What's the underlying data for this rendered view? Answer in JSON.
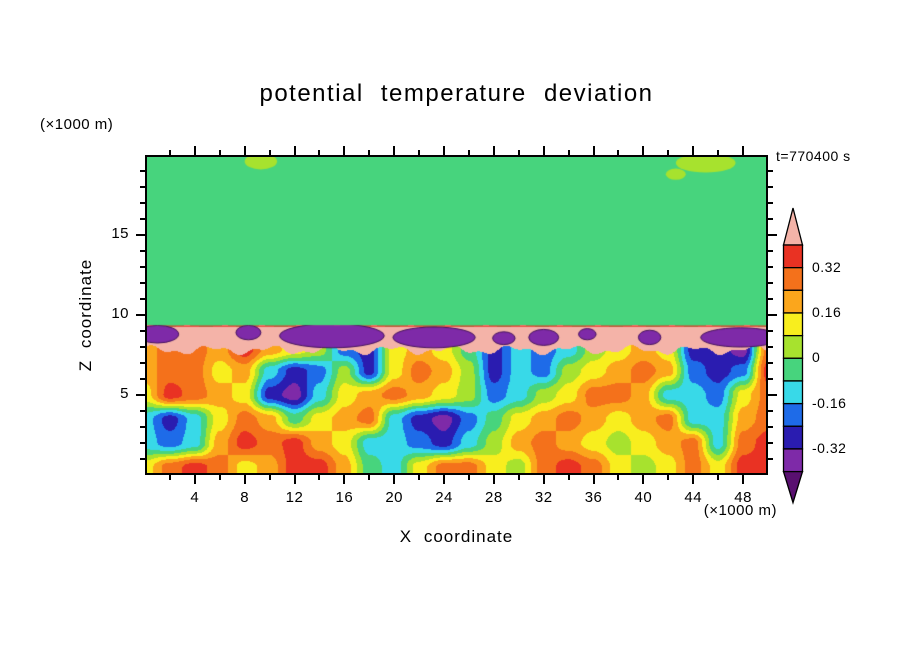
{
  "figure": {
    "title": "potential temperature deviation",
    "time_label": "t=770400 s"
  },
  "axes": {
    "x": {
      "label": "X coordinate",
      "unit_label": "(×1000 m)",
      "min": 0,
      "max": 50,
      "major_tick_labels": [
        "4",
        "8",
        "12",
        "16",
        "20",
        "24",
        "28",
        "32",
        "36",
        "40",
        "44",
        "48"
      ],
      "minor_tick_step": 2
    },
    "z": {
      "label": "Z coordinate",
      "unit_label": "(×1000 m)",
      "min": 0,
      "max": 20,
      "major_tick_labels": [
        "5",
        "10",
        "15"
      ],
      "minor_tick_step": 1
    }
  },
  "colorbar": {
    "labels": [
      "0.32",
      "0.16",
      "0",
      "-0.16",
      "-0.32"
    ],
    "label_boundary_indices": [
      1,
      3,
      5,
      7,
      9
    ],
    "box_colors_top_to_bottom": [
      "#e93223",
      "#f4711b",
      "#fba61c",
      "#f8ee1e",
      "#a7e22e",
      "#47d47d",
      "#38d9e8",
      "#1e6be8",
      "#2a1cb0",
      "#7e2aa8"
    ],
    "triangle_top_color": "#f4b3a8",
    "triangle_bottom_color": "#591070"
  },
  "chart_data": {
    "type": "heatmap",
    "title": "potential temperature deviation",
    "xlabel": "X coordinate (×1000 m)",
    "ylabel": "Z coordinate (×1000 m)",
    "xlim": [
      0,
      50
    ],
    "ylim": [
      0,
      20
    ],
    "annotations": [
      "t=770400 s"
    ],
    "legend": "filled contour colorbar, labeled levels 0.32, 0.16, 0, -0.16, -0.32",
    "levels": [
      -0.4,
      -0.32,
      -0.24,
      -0.16,
      -0.08,
      0,
      0.08,
      0.16,
      0.24,
      0.32,
      0.4
    ],
    "level_colors": [
      "#591070",
      "#7e2aa8",
      "#2a1cb0",
      "#1e6be8",
      "#38d9e8",
      "#47d47d",
      "#a7e22e",
      "#f8ee1e",
      "#fba61c",
      "#f4711b",
      "#e93223",
      "#f4b3a8"
    ],
    "field": {
      "upper_region_value": -0.04,
      "inversion_band": {
        "z_bottom": 7.8,
        "z_top": 9.3,
        "value": 0.45
      },
      "cold_blobs_in_band": [
        {
          "x": 1.0,
          "z": 8.8,
          "rx": 1.7,
          "rz": 0.55,
          "value": -0.36
        },
        {
          "x": 8.3,
          "z": 8.9,
          "rx": 1.0,
          "rz": 0.45,
          "value": -0.36
        },
        {
          "x": 15.0,
          "z": 8.7,
          "rx": 4.2,
          "rz": 0.75,
          "value": -0.36
        },
        {
          "x": 23.2,
          "z": 8.6,
          "rx": 3.3,
          "rz": 0.65,
          "value": -0.36
        },
        {
          "x": 28.8,
          "z": 8.55,
          "rx": 0.9,
          "rz": 0.4,
          "value": -0.36
        },
        {
          "x": 32.0,
          "z": 8.6,
          "rx": 1.2,
          "rz": 0.5,
          "value": -0.36
        },
        {
          "x": 35.5,
          "z": 8.8,
          "rx": 0.7,
          "rz": 0.35,
          "value": -0.36
        },
        {
          "x": 40.5,
          "z": 8.6,
          "rx": 0.9,
          "rz": 0.45,
          "value": -0.36
        },
        {
          "x": 47.8,
          "z": 8.6,
          "rx": 3.2,
          "rz": 0.6,
          "value": -0.36
        }
      ],
      "upper_specks": [
        {
          "x": 9.3,
          "z": 19.6,
          "rx": 1.3,
          "rz": 0.5,
          "value": 0.04
        },
        {
          "x": 45.0,
          "z": 19.5,
          "rx": 2.4,
          "rz": 0.6,
          "value": 0.04
        },
        {
          "x": 42.6,
          "z": 18.8,
          "rx": 0.8,
          "rz": 0.35,
          "value": 0.04
        }
      ],
      "mixed_layer_grid": {
        "xs": [
          0,
          2,
          4,
          6,
          8,
          10,
          12,
          14,
          16,
          18,
          20,
          22,
          24,
          26,
          28,
          30,
          32,
          34,
          36,
          38,
          40,
          42,
          44,
          46,
          48,
          50
        ],
        "zs": [
          0.5,
          2,
          3.5,
          5,
          6.5,
          7.8
        ],
        "values": [
          [
            0.12,
            0.28,
            0.36,
            0.28,
            0.12,
            0.2,
            0.36,
            0.36,
            0.2,
            -0.04,
            -0.12,
            0.12,
            0.28,
            0.28,
            0.12,
            0.04,
            0.28,
            0.36,
            0.28,
            0.12,
            0.04,
            0.12,
            0.28,
            0.12,
            0.36,
            0.36
          ],
          [
            -0.12,
            -0.2,
            -0.12,
            0.2,
            0.36,
            0.28,
            0.36,
            0.2,
            0.12,
            -0.12,
            -0.12,
            -0.2,
            -0.28,
            -0.12,
            0.04,
            0.2,
            0.28,
            0.2,
            0.12,
            0.04,
            0.12,
            0.2,
            0.28,
            -0.12,
            0.28,
            0.36
          ],
          [
            -0.12,
            -0.28,
            -0.12,
            0.12,
            0.28,
            0.2,
            -0.04,
            0.12,
            0.2,
            0.28,
            -0.12,
            -0.28,
            -0.36,
            -0.2,
            -0.04,
            0.12,
            0.2,
            0.28,
            0.2,
            0.12,
            0.2,
            0.28,
            -0.12,
            -0.12,
            0.2,
            0.28
          ],
          [
            0.12,
            0.36,
            0.28,
            0.2,
            0.12,
            -0.28,
            -0.36,
            -0.12,
            0.12,
            0.2,
            0.28,
            0.2,
            0.12,
            0.04,
            -0.2,
            -0.12,
            0.04,
            0.12,
            0.28,
            0.28,
            0.2,
            -0.12,
            -0.12,
            -0.2,
            0.12,
            0.28
          ],
          [
            0.2,
            0.28,
            0.28,
            0.12,
            0.2,
            -0.12,
            -0.28,
            -0.2,
            0.04,
            -0.28,
            0.12,
            0.28,
            0.2,
            0.04,
            -0.28,
            -0.12,
            -0.2,
            0.04,
            0.12,
            0.2,
            0.28,
            0.2,
            -0.2,
            -0.28,
            -0.2,
            0.36
          ],
          [
            0.2,
            0.28,
            0.28,
            0.2,
            0.36,
            0.2,
            0.12,
            0.04,
            -0.2,
            -0.28,
            0.12,
            0.2,
            0.12,
            -0.04,
            -0.28,
            -0.12,
            -0.2,
            -0.12,
            0.04,
            0.12,
            0.2,
            0.12,
            -0.28,
            -0.28,
            -0.36,
            0.28
          ]
        ]
      }
    }
  }
}
